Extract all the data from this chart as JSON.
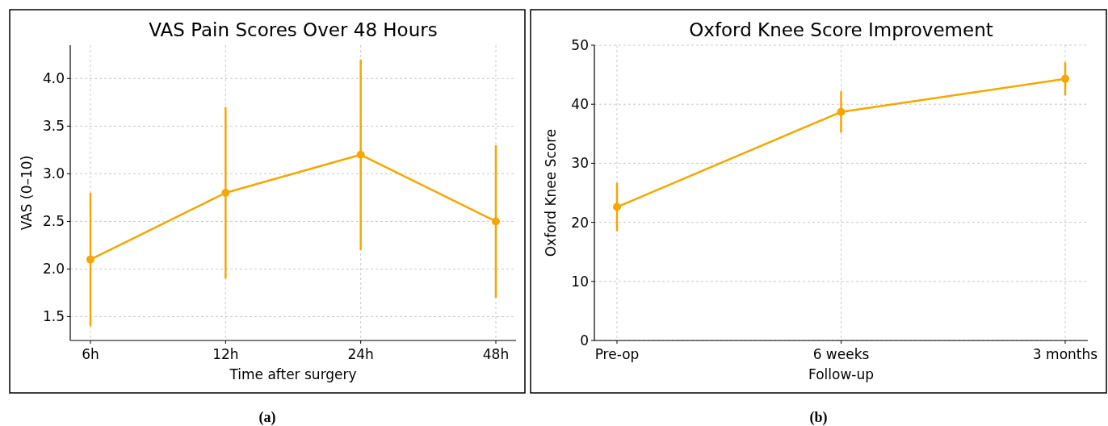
{
  "chart_data": [
    {
      "type": "line",
      "title": "VAS Pain Scores Over 48 Hours",
      "xlabel": "Time after surgery",
      "ylabel": "VAS (0–10)",
      "categories": [
        "6h",
        "12h",
        "24h",
        "48h"
      ],
      "series": [
        {
          "color": "#f5a700",
          "values": [
            2.1,
            2.8,
            3.2,
            2.5
          ],
          "errors": [
            [
              1.4,
              2.8
            ],
            [
              1.9,
              3.7
            ],
            [
              2.2,
              4.2
            ],
            [
              1.7,
              3.3
            ]
          ]
        }
      ],
      "ylim": [
        1.25,
        4.35
      ],
      "yticks": [
        1.5,
        {
          "value": 2,
          "label": "2.0"
        },
        2.5,
        {
          "value": 3,
          "label": "3.0"
        },
        3.5,
        {
          "value": 4,
          "label": "4.0"
        }
      ],
      "grid": true,
      "marker": "circle",
      "line_style": "solid",
      "annotations": [
        "(a)"
      ]
    },
    {
      "type": "line",
      "title": "Oxford Knee Score Improvement",
      "xlabel": "Follow-up",
      "ylabel": "Oxford Knee Score",
      "categories": [
        "Pre-op",
        "6 weeks",
        "3 months"
      ],
      "series": [
        {
          "color": "#f5a700",
          "values": [
            22.6,
            38.7,
            44.3
          ],
          "errors": [
            [
              18.5,
              26.7
            ],
            [
              35.2,
              42.2
            ],
            [
              41.5,
              47.1
            ]
          ]
        }
      ],
      "ylim": [
        0,
        50
      ],
      "yticks": [
        0,
        10,
        20,
        30,
        40,
        50
      ],
      "grid": true,
      "marker": "circle",
      "line_style": "solid",
      "annotations": [
        "(b)"
      ]
    }
  ]
}
